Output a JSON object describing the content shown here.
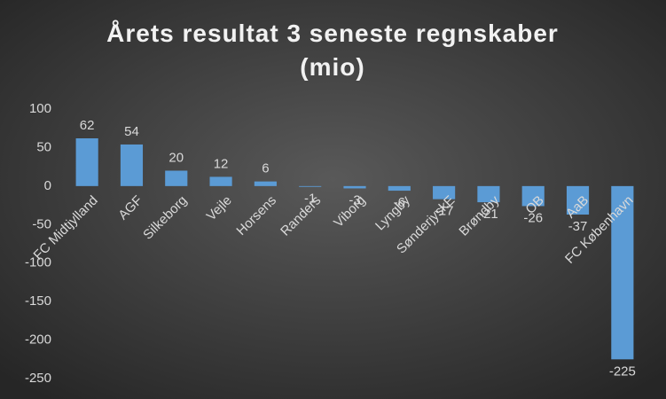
{
  "chart_data": {
    "type": "bar",
    "title": "Årets resultat 3 seneste regnskaber (mio)",
    "categories": [
      "FC Midtjylland",
      "AGF",
      "Silkeborg",
      "Vejle",
      "Horsens",
      "Randers",
      "Viborg",
      "Lyngby",
      "SønderjyskE",
      "Brøndby",
      "OB",
      "AaB",
      "FC København"
    ],
    "values": [
      62,
      54,
      20,
      12,
      6,
      -1,
      -3,
      -6,
      -17,
      -21,
      -26,
      -37,
      -225
    ],
    "color": "#5b9bd5",
    "ylim": [
      -250,
      100
    ],
    "yticks": [
      -250,
      -200,
      -150,
      -100,
      -50,
      0,
      50,
      100
    ],
    "grid": false
  }
}
